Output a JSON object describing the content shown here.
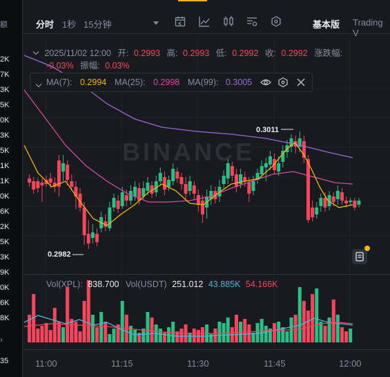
{
  "left_values": [
    "额",
    "2K",
    "7K",
    "3K",
    "5K",
    "0K",
    "3K",
    "5K",
    "1K",
    "1K",
    "0K",
    "6K",
    "2K",
    "5K",
    "3K",
    "9K",
    "0K",
    "6K",
    "8K",
    "3K",
    "35"
  ],
  "toolbar": {
    "interval_time": "分时",
    "interval_1s": "1秒",
    "interval_15m": "15分钟",
    "view_basic": "基本版",
    "view_tradingview": "Trading V"
  },
  "ohlc": {
    "datetime": "2025/11/02 12:00",
    "open_label": "开:",
    "open": "0.2993",
    "high_label": "高:",
    "high": "0.2993",
    "low_label": "低:",
    "low": "0.2992",
    "close_label": "收:",
    "close": "0.2992",
    "change_label": "涨跌幅:",
    "change": "-0.03%",
    "amp_label": "振幅:",
    "amp": "0.03%"
  },
  "ma": {
    "ma7_label": "MA(7):",
    "ma7": "0.2994",
    "ma25_label": "MA(25):",
    "ma25": "0.2998",
    "ma99_label": "MA(99):",
    "ma99": "0.3005"
  },
  "price_markers": {
    "high": "0.3011",
    "low": "0.2982"
  },
  "volume": {
    "xpl_label": "Vol(XPL):",
    "xpl": "838.700",
    "usdt_label": "Vol(USDT)",
    "usdt": "251.012",
    "ma1": "43.885K",
    "ma2": "54.166K"
  },
  "watermark": "BINANCE",
  "x_labels": [
    "11:00",
    "11:15",
    "11:30",
    "11:45",
    "12:00"
  ],
  "colors": {
    "up": "#2ebd85",
    "down": "#f6465d",
    "ma7": "#f0b90b",
    "ma25": "#d04f9c",
    "ma99": "#9a6bd6",
    "accent": "#f0b90b"
  }
}
